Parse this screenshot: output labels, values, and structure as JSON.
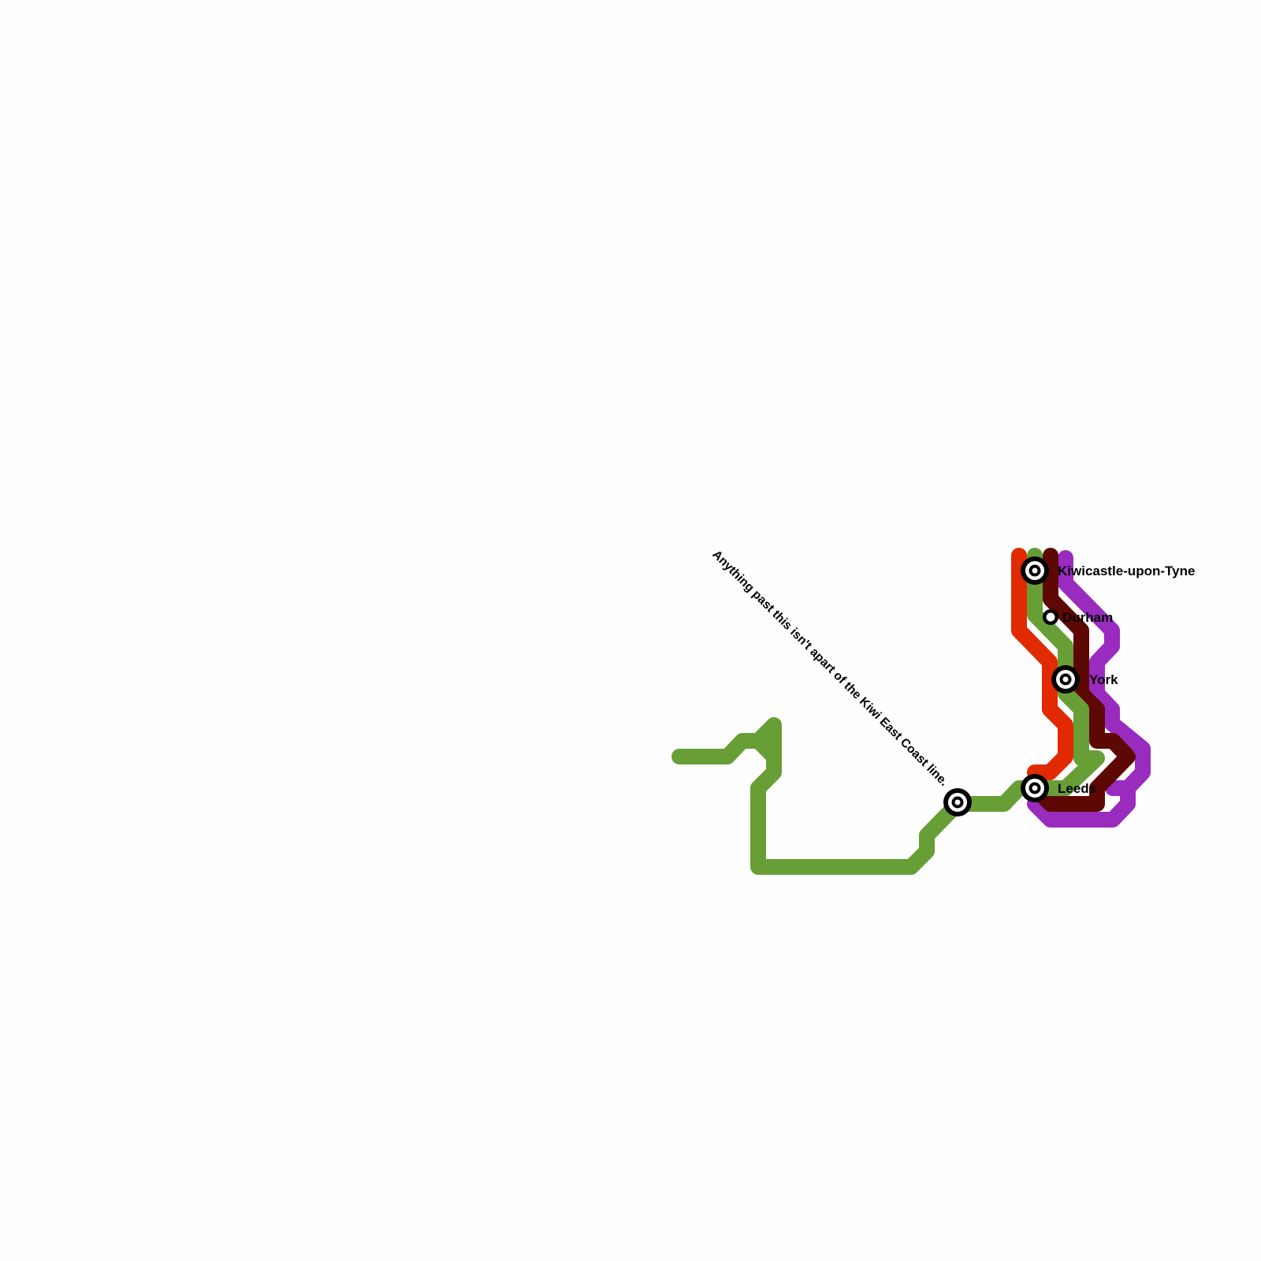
{
  "map": {
    "note": "Anything past this isn't apart of the Kiwi East Coast line.",
    "lines": [
      {
        "id": "red",
        "color": "#e22a00"
      },
      {
        "id": "green",
        "color": "#679f36"
      },
      {
        "id": "maroon",
        "color": "#5e0803"
      },
      {
        "id": "purple",
        "color": "#9a2bbf"
      }
    ],
    "stations": [
      {
        "name": "Kiwicastle-upon-Tyne",
        "type": "interchange"
      },
      {
        "name": "Durham",
        "type": "stop"
      },
      {
        "name": "York",
        "type": "interchange"
      },
      {
        "name": "Leeds",
        "type": "interchange"
      },
      {
        "name": "",
        "type": "interchange"
      }
    ]
  }
}
